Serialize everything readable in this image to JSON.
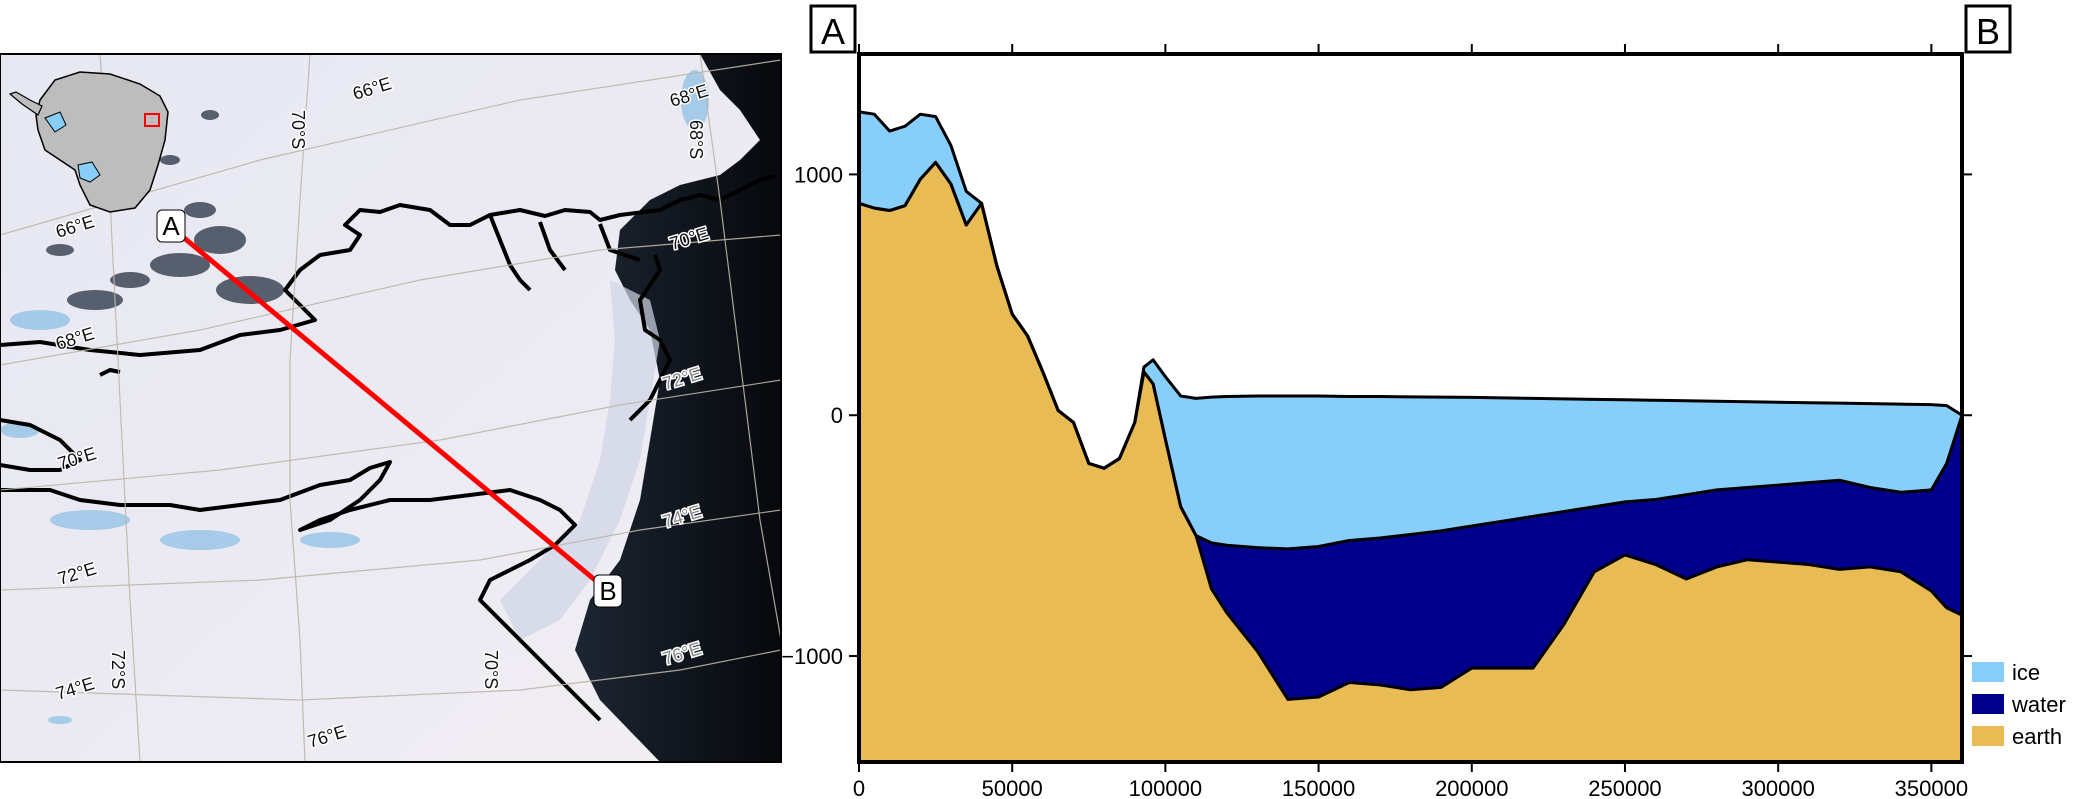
{
  "map": {
    "points": [
      {
        "label": "A",
        "lon": 66.8,
        "lat": -69.2
      },
      {
        "label": "B",
        "lon": 74.5,
        "lat": -70.5
      }
    ],
    "graticule_labels": [
      "66°E",
      "68°E",
      "70°E",
      "72°E",
      "74°E",
      "76°E",
      "66°E",
      "68°E",
      "70°E",
      "72°E",
      "74°E",
      "76°E",
      "68°S",
      "70°S",
      "72°S",
      "70°S"
    ],
    "profile_line_color": "#ff0000",
    "ice_shelf_label": "",
    "inset": {
      "description_color": "#bdbdbd",
      "marker_color": "#ff0000"
    }
  },
  "profile": {
    "start_label": "A",
    "end_label": "B",
    "legend": [
      {
        "name": "ice",
        "color": "#87cefa"
      },
      {
        "name": "water",
        "color": "#00008b"
      },
      {
        "name": "earth",
        "color": "#e8bb55"
      }
    ]
  },
  "chart_data": {
    "type": "area",
    "title": "",
    "xlabel": "",
    "ylabel": "",
    "xlim": [
      0,
      360000
    ],
    "ylim": [
      -1440,
      1500
    ],
    "x_ticks": [
      0,
      50000,
      100000,
      150000,
      200000,
      250000,
      300000,
      350000
    ],
    "x_tick_labels": [
      "0",
      "50000",
      "100000",
      "150000",
      "200000",
      "250000",
      "300000",
      "350000"
    ],
    "y_ticks": [
      -1000,
      0,
      1000
    ],
    "y_tick_labels": [
      "−1000",
      "0",
      "1000"
    ],
    "grid": false,
    "legend_position": "bottom-right",
    "x": [
      0,
      5000,
      10000,
      15000,
      20000,
      25000,
      30000,
      35000,
      40000,
      45000,
      50000,
      55000,
      60000,
      65000,
      70000,
      75000,
      80000,
      85000,
      90000,
      93000,
      96000,
      100000,
      105000,
      110000,
      115000,
      120000,
      130000,
      140000,
      150000,
      160000,
      170000,
      180000,
      190000,
      200000,
      210000,
      220000,
      230000,
      240000,
      250000,
      260000,
      270000,
      280000,
      290000,
      300000,
      310000,
      320000,
      330000,
      340000,
      350000,
      355000,
      360000
    ],
    "series": [
      {
        "name": "ice",
        "values": [
          1260,
          1250,
          1180,
          1200,
          1250,
          1240,
          1120,
          930,
          880,
          620,
          420,
          330,
          180,
          20,
          -30,
          -200,
          -220,
          -180,
          -30,
          200,
          230,
          160,
          80,
          70,
          75,
          78,
          80,
          80,
          80,
          78,
          78,
          76,
          75,
          74,
          72,
          70,
          68,
          66,
          64,
          62,
          60,
          58,
          56,
          54,
          52,
          50,
          48,
          46,
          44,
          40,
          0
        ]
      },
      {
        "name": "water",
        "values": [
          880,
          860,
          850,
          870,
          980,
          1050,
          960,
          790,
          880,
          620,
          420,
          330,
          180,
          20,
          -30,
          -200,
          -220,
          -180,
          -30,
          180,
          130,
          -100,
          -380,
          -500,
          -530,
          -540,
          -550,
          -555,
          -545,
          -520,
          -510,
          -495,
          -480,
          -460,
          -440,
          -420,
          -400,
          -380,
          -360,
          -350,
          -330,
          -310,
          -300,
          -290,
          -280,
          -270,
          -300,
          -320,
          -310,
          -200,
          0
        ]
      },
      {
        "name": "earth",
        "values": [
          880,
          860,
          850,
          870,
          980,
          1050,
          960,
          790,
          880,
          620,
          420,
          330,
          180,
          20,
          -30,
          -200,
          -220,
          -180,
          -30,
          180,
          130,
          -100,
          -380,
          -500,
          -720,
          -820,
          -980,
          -1180,
          -1170,
          -1110,
          -1120,
          -1140,
          -1130,
          -1050,
          -1050,
          -1050,
          -870,
          -650,
          -580,
          -620,
          -680,
          -630,
          -600,
          -610,
          -620,
          -640,
          -630,
          -650,
          -730,
          -800,
          -830
        ]
      }
    ]
  }
}
